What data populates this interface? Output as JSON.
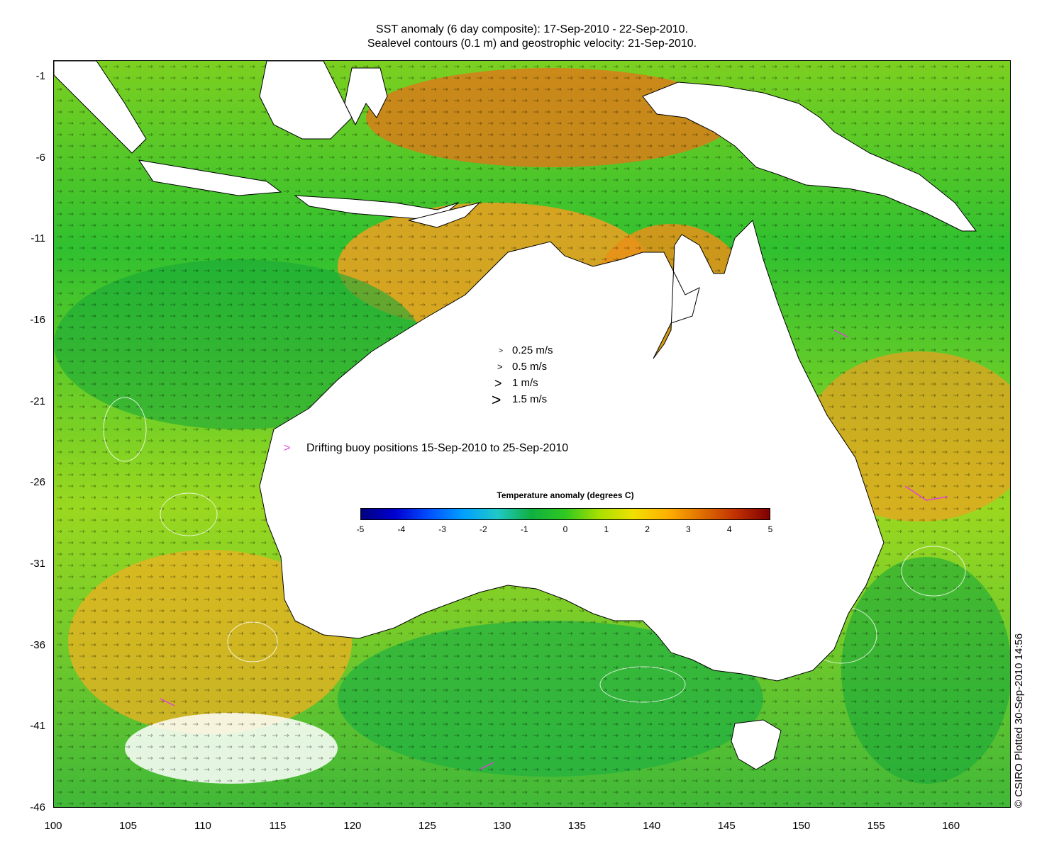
{
  "title_line1": "SST anomaly (6 day composite): 17-Sep-2010 - 22-Sep-2010.",
  "title_line2": "Sealevel contours (0.1 m) and geostrophic velocity: 21-Sep-2010.",
  "axes": {
    "x_ticks": [
      "100",
      "105",
      "110",
      "115",
      "120",
      "125",
      "130",
      "135",
      "140",
      "145",
      "150",
      "155",
      "160"
    ],
    "y_ticks": [
      "-1",
      "-6",
      "-11",
      "-16",
      "-21",
      "-26",
      "-31",
      "-36",
      "-41",
      "-46"
    ],
    "xlim": [
      100,
      164
    ],
    "ylim": [
      -46,
      0
    ]
  },
  "velocity_legend": [
    {
      "glyph": ">",
      "label": "0.25 m/s",
      "speed": 0.25
    },
    {
      "glyph": ">",
      "label": "0.5 m/s",
      "speed": 0.5
    },
    {
      "glyph": ">",
      "label": "1 m/s",
      "speed": 1
    },
    {
      "glyph": ">",
      "label": "1.5 m/s",
      "speed": 1.5
    }
  ],
  "buoy_legend": {
    "marker": ">",
    "label": "Drifting buoy positions 15-Sep-2010 to 25-Sep-2010",
    "color": "#e040e0"
  },
  "colorbar": {
    "title": "Temperature anomaly (degrees C)",
    "ticks": [
      "-5",
      "-4",
      "-3",
      "-2",
      "-1",
      "0",
      "1",
      "2",
      "3",
      "4",
      "5"
    ],
    "range": [
      -5,
      5
    ],
    "colors": [
      "#000080",
      "#0000d0",
      "#0050ff",
      "#00a0ff",
      "#20c8c8",
      "#10b040",
      "#30c820",
      "#a8e000",
      "#f0e000",
      "#ffb000",
      "#e07000",
      "#c03000",
      "#800000"
    ]
  },
  "credit": "© CSIRO Plotted 30-Sep-2010 14:56",
  "colors": {
    "land": "#ffffff",
    "coast": "#000000",
    "ocean_cool": "#22b83a",
    "ocean_warm": "#f0a020",
    "contour": "#ffffff"
  }
}
